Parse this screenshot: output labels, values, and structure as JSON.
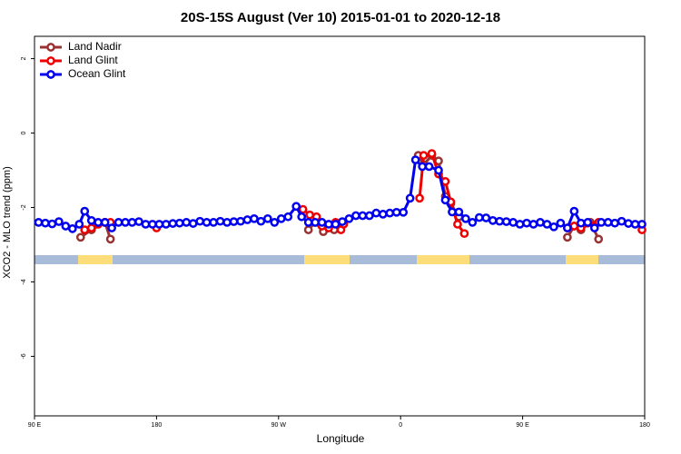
{
  "chart_data": {
    "type": "line",
    "title": "20S-15S August (Ver 10)   2015-01-01 to 2020-12-18",
    "x_label": "Longitude",
    "y_label": "XCO2 - MLO trend (ppm)",
    "xlim": [
      90,
      540
    ],
    "xticks": [
      {
        "value": 90,
        "label": "90 E"
      },
      180,
      {
        "value": 270,
        "label": "90 W"
      },
      {
        "value": 360,
        "label": "0"
      },
      {
        "value": 450,
        "label": "90 E"
      },
      180
    ],
    "ylim": [
      -7.6,
      2.6
    ],
    "yticks": [
      2,
      0,
      -2,
      -4,
      -6
    ],
    "legend": "top-left",
    "series": [
      {
        "name": "Land Nadir",
        "color": "#993333",
        "x": [
          124,
          132,
          142,
          146,
          220,
          292,
          297,
          303,
          311,
          315,
          345,
          373,
          377,
          383,
          388,
          393,
          397,
          403,
          445,
          483,
          488,
          493,
          500,
          506
        ],
        "values": [
          -2.8,
          -2.6,
          -2.4,
          -2.85,
          null,
          -2.6,
          -2.4,
          -2.65,
          -2.6,
          -2.45,
          null,
          -0.6,
          -0.85,
          -0.6,
          -0.75,
          -1.7,
          -1.9,
          -2.25,
          null,
          -2.8,
          -2.5,
          -2.6,
          -2.4,
          -2.85
        ]
      },
      {
        "name": "Land Glint",
        "color": "#ee0000",
        "x": [
          127,
          132,
          137,
          142,
          146,
          160,
          180,
          200,
          288,
          293,
          298,
          302,
          307,
          312,
          316,
          318,
          345,
          374,
          377,
          383,
          388,
          393,
          397,
          402,
          407,
          445,
          483,
          488,
          493,
          498,
          506,
          520,
          538
        ],
        "values": [
          -2.6,
          -2.55,
          -2.45,
          -2.4,
          -2.4,
          null,
          -2.55,
          null,
          -2.05,
          -2.2,
          -2.25,
          -2.5,
          -2.55,
          -2.4,
          -2.6,
          -2.45,
          null,
          -1.75,
          -0.6,
          -0.55,
          -1.1,
          -1.3,
          -1.85,
          -2.45,
          -2.7,
          null,
          -2.55,
          -2.5,
          -2.55,
          -2.42,
          -2.4,
          null,
          -2.6
        ]
      },
      {
        "name": "Ocean Glint",
        "color": "#0000ee",
        "x": [
          93,
          98,
          103,
          108,
          113,
          118,
          123,
          127,
          132,
          137,
          142,
          147,
          152,
          157,
          162,
          167,
          172,
          177,
          182,
          187,
          192,
          197,
          202,
          207,
          212,
          217,
          222,
          227,
          232,
          237,
          242,
          247,
          252,
          257,
          262,
          267,
          272,
          277,
          283,
          287,
          292,
          297,
          302,
          307,
          312,
          317,
          322,
          327,
          332,
          337,
          342,
          347,
          352,
          357,
          362,
          367,
          371,
          376,
          381,
          388,
          393,
          398,
          403,
          408,
          413,
          418,
          423,
          428,
          433,
          438,
          443,
          448,
          453,
          458,
          463,
          468,
          473,
          478,
          483,
          488,
          493,
          498,
          503,
          508,
          513,
          518,
          523,
          528,
          533,
          538
        ],
        "values": [
          -2.4,
          -2.42,
          -2.44,
          -2.38,
          -2.5,
          -2.57,
          -2.45,
          -2.1,
          -2.35,
          -2.4,
          -2.4,
          -2.55,
          -2.4,
          -2.4,
          -2.4,
          -2.38,
          -2.45,
          -2.45,
          -2.45,
          -2.45,
          -2.43,
          -2.42,
          -2.4,
          -2.43,
          -2.37,
          -2.4,
          -2.4,
          -2.37,
          -2.4,
          -2.38,
          -2.37,
          -2.33,
          -2.3,
          -2.37,
          -2.3,
          -2.4,
          -2.3,
          -2.25,
          -1.97,
          -2.25,
          -2.4,
          -2.4,
          -2.4,
          -2.45,
          -2.45,
          -2.38,
          -2.3,
          -2.22,
          -2.22,
          -2.22,
          -2.15,
          -2.18,
          -2.15,
          -2.13,
          -2.13,
          -1.75,
          -0.72,
          -0.9,
          -0.9,
          -1.0,
          -1.8,
          -2.12,
          -2.12,
          -2.3,
          -2.4,
          -2.27,
          -2.28,
          -2.35,
          -2.37,
          -2.38,
          -2.4,
          -2.45,
          -2.42,
          -2.45,
          -2.4,
          -2.45,
          -2.52,
          -2.42,
          -2.55,
          -2.1,
          -2.42,
          -2.4,
          -2.55,
          -2.4,
          -2.4,
          -2.42,
          -2.37,
          -2.43,
          -2.45,
          -2.45
        ]
      }
    ]
  }
}
